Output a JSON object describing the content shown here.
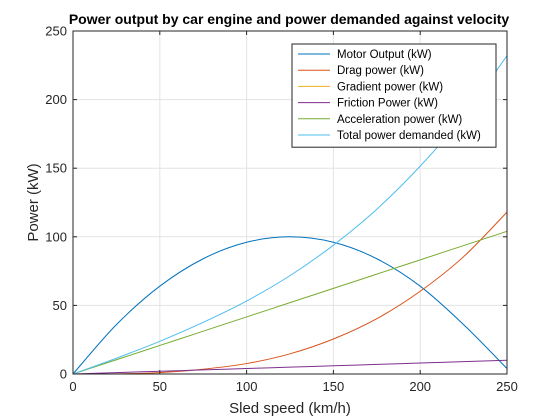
{
  "chart_data": {
    "type": "line",
    "title": "Power output by car engine and power demanded against velocity",
    "xlabel": "Sled speed (km/h)",
    "ylabel": "Power (kW)",
    "xlim": [
      0,
      250
    ],
    "ylim": [
      0,
      250
    ],
    "xticks": [
      0,
      50,
      100,
      150,
      200,
      250
    ],
    "yticks": [
      0,
      50,
      100,
      150,
      200,
      250
    ],
    "grid": true,
    "legend_position": "top-right",
    "x": [
      0,
      25,
      50,
      75,
      100,
      125,
      150,
      175,
      200,
      225,
      250
    ],
    "series": [
      {
        "name": "Motor Output (kW)",
        "color": "#0072BD",
        "values": [
          0,
          36,
          64,
          84,
          96,
          100,
          96,
          84,
          64,
          36,
          4
        ]
      },
      {
        "name": "Drag power (kW)",
        "color": "#D95319",
        "values": [
          0,
          0.1,
          1,
          3.5,
          7.6,
          14.7,
          25.5,
          40.3,
          60.3,
          85.5,
          118
        ]
      },
      {
        "name": "Gradient power (kW)",
        "color": "#EDB120",
        "values": [
          0,
          0,
          0,
          0,
          0,
          0,
          0,
          0,
          0,
          0,
          0
        ]
      },
      {
        "name": "Friction Power (kW)",
        "color": "#7E2F8E",
        "values": [
          0,
          1,
          2,
          3,
          4,
          5,
          6,
          7,
          8,
          9,
          10
        ]
      },
      {
        "name": "Acceleration power (kW)",
        "color": "#77AC30",
        "values": [
          0,
          10.4,
          20.8,
          31.2,
          41.6,
          52,
          62.4,
          72.8,
          83.2,
          93.6,
          104
        ]
      },
      {
        "name": "Total power demanded (kW)",
        "color": "#4DBEEE",
        "values": [
          0,
          11.5,
          23.8,
          37.7,
          53.2,
          71.7,
          93.9,
          120.1,
          151.5,
          188.1,
          232
        ]
      }
    ]
  }
}
